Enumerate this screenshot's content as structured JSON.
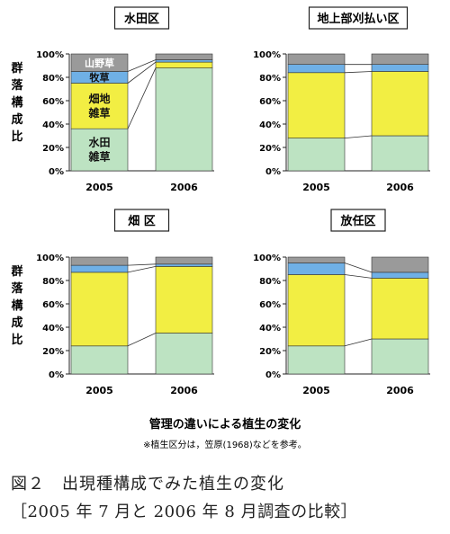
{
  "chart_data": [
    {
      "type": "bar",
      "stacked": true,
      "title": "水田区",
      "categories": [
        "2005",
        "2006"
      ],
      "ylim": [
        0,
        100
      ],
      "yticks": [
        "0%",
        "20%",
        "40%",
        "60%",
        "80%",
        "100%"
      ],
      "ylabel": "群落構成比",
      "series": [
        {
          "name": "水田雑草",
          "values": [
            36,
            88
          ]
        },
        {
          "name": "畑地雑草",
          "values": [
            39,
            5
          ]
        },
        {
          "name": "牧草",
          "values": [
            10,
            2
          ]
        },
        {
          "name": "山野草",
          "values": [
            15,
            5
          ]
        }
      ]
    },
    {
      "type": "bar",
      "stacked": true,
      "title": "地上部刈払い区",
      "categories": [
        "2005",
        "2006"
      ],
      "ylim": [
        0,
        100
      ],
      "yticks": [
        "0%",
        "20%",
        "40%",
        "60%",
        "80%",
        "100%"
      ],
      "series": [
        {
          "values": [
            28,
            30
          ]
        },
        {
          "values": [
            56,
            55
          ]
        },
        {
          "values": [
            7,
            6
          ]
        },
        {
          "values": [
            9,
            9
          ]
        }
      ]
    },
    {
      "type": "bar",
      "stacked": true,
      "title": "畑 区",
      "categories": [
        "2005",
        "2006"
      ],
      "ylim": [
        0,
        100
      ],
      "yticks": [
        "0%",
        "20%",
        "40%",
        "60%",
        "80%",
        "100%"
      ],
      "ylabel": "群落構成比",
      "series": [
        {
          "values": [
            24,
            35
          ]
        },
        {
          "values": [
            63,
            57
          ]
        },
        {
          "values": [
            6,
            2
          ]
        },
        {
          "values": [
            7,
            6
          ]
        }
      ]
    },
    {
      "type": "bar",
      "stacked": true,
      "title": "放任区",
      "categories": [
        "2005",
        "2006"
      ],
      "ylim": [
        0,
        100
      ],
      "yticks": [
        "0%",
        "20%",
        "40%",
        "60%",
        "80%",
        "100%"
      ],
      "series": [
        {
          "values": [
            24,
            30
          ]
        },
        {
          "values": [
            61,
            52
          ]
        },
        {
          "values": [
            10,
            5
          ]
        },
        {
          "values": [
            5,
            13
          ]
        }
      ]
    }
  ],
  "colors": [
    "#bde3c2",
    "#f2ee43",
    "#6fb0e6",
    "#9a9a9a"
  ],
  "main_label": "管理の違いによる植生の変化",
  "note": "※植生区分は，笠原(1968)などを参考。",
  "caption_line1": "図２　出現種構成でみた植生の変化",
  "caption_line2": "［2005 年 7 月と 2006 年 8 月調査の比較］"
}
